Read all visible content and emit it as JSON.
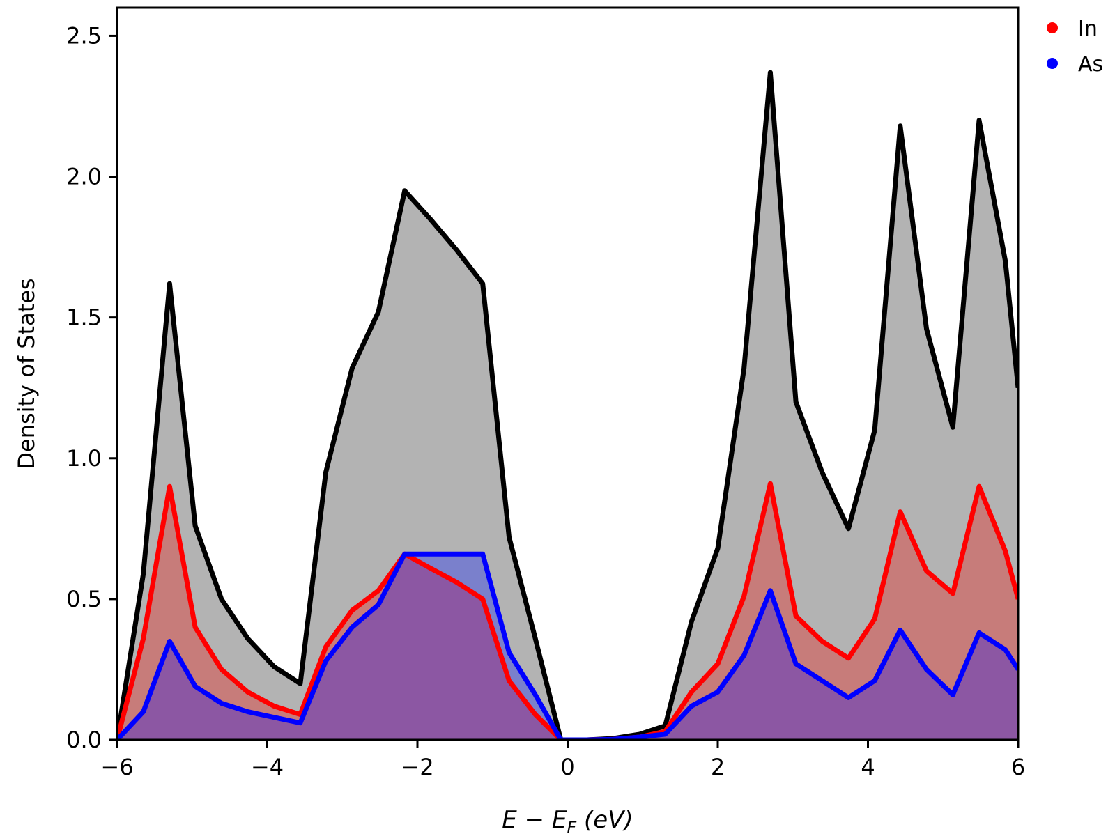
{
  "chart_data": {
    "type": "area",
    "xlabel": "E − E",
    "xlabel_sub": "F",
    "xlabel_unit": " (eV)",
    "ylabel": "Density of States",
    "xlim": [
      -6,
      6
    ],
    "ylim": [
      0,
      2.6
    ],
    "xticks": [
      -6,
      -4,
      -2,
      0,
      2,
      4,
      6
    ],
    "xtick_labels": [
      "−6",
      "−4",
      "−2",
      "0",
      "2",
      "4",
      "6"
    ],
    "yticks": [
      0.0,
      0.5,
      1.0,
      1.5,
      2.0,
      2.5
    ],
    "ytick_labels": [
      "0.0",
      "0.5",
      "1.0",
      "1.5",
      "2.0",
      "2.5"
    ],
    "grid": false,
    "legend_position": "top-right",
    "x": [
      -6.0,
      -5.65,
      -5.3,
      -4.96,
      -4.61,
      -4.26,
      -3.91,
      -3.56,
      -3.22,
      -2.87,
      -2.52,
      -2.17,
      -1.83,
      -1.48,
      -1.13,
      -0.78,
      -0.43,
      -0.09,
      0.26,
      0.61,
      0.96,
      1.3,
      1.65,
      2.0,
      2.35,
      2.7,
      3.04,
      3.39,
      3.74,
      4.09,
      4.43,
      4.78,
      5.13,
      5.48,
      5.83,
      6.0
    ],
    "total": {
      "color": "#000000",
      "fill": "#b3b3b3",
      "values": [
        0.0,
        0.59,
        1.62,
        0.76,
        0.5,
        0.36,
        0.26,
        0.2,
        0.95,
        1.32,
        1.52,
        1.95,
        1.85,
        1.74,
        1.62,
        0.72,
        0.36,
        0.0,
        0.0,
        0.005,
        0.02,
        0.05,
        0.42,
        0.68,
        1.32,
        2.37,
        1.2,
        0.95,
        0.75,
        1.1,
        2.18,
        1.46,
        1.11,
        2.2,
        1.7,
        1.25
      ]
    },
    "series": [
      {
        "name": "In",
        "color": "#ff0000",
        "fill": "#c77c7a",
        "values": [
          0.0,
          0.36,
          0.9,
          0.4,
          0.25,
          0.17,
          0.12,
          0.09,
          0.33,
          0.46,
          0.53,
          0.66,
          0.61,
          0.56,
          0.5,
          0.21,
          0.09,
          0.0,
          0.0,
          0.002,
          0.01,
          0.03,
          0.17,
          0.27,
          0.51,
          0.91,
          0.44,
          0.35,
          0.29,
          0.43,
          0.81,
          0.6,
          0.52,
          0.9,
          0.67,
          0.5
        ]
      },
      {
        "name": "As",
        "color": "#0000ff",
        "fill": "#7a80cc",
        "values": [
          0.0,
          0.1,
          0.35,
          0.19,
          0.13,
          0.1,
          0.08,
          0.06,
          0.28,
          0.4,
          0.48,
          0.66,
          0.66,
          0.66,
          0.66,
          0.31,
          0.16,
          0.0,
          0.0,
          0.002,
          0.01,
          0.02,
          0.12,
          0.17,
          0.3,
          0.53,
          0.27,
          0.21,
          0.15,
          0.21,
          0.39,
          0.25,
          0.16,
          0.38,
          0.32,
          0.25
        ]
      }
    ],
    "overlap_fill": "#8c57a3"
  }
}
